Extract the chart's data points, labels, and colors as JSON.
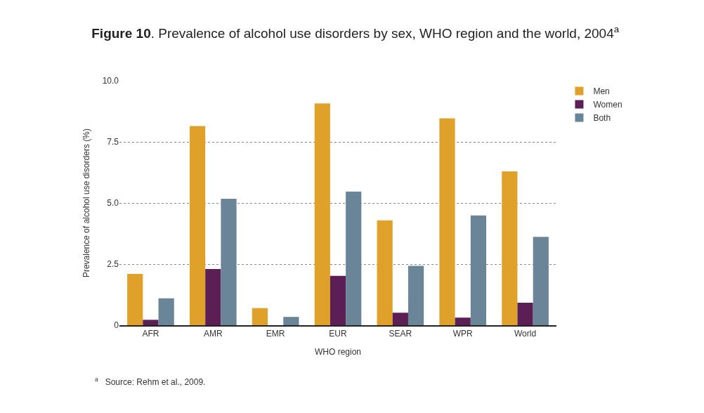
{
  "chart_data": {
    "type": "bar",
    "title": "Figure 10. Prevalence of alcohol use disorders by sex, WHO region and the world, 2004$^{a}$",
    "xlabel": "WHO region",
    "ylabel": "Prevalence of alcohol use disorders (%)",
    "categories": [
      "AFR",
      "AMR",
      "EMR",
      "EUR",
      "SEAR",
      "WPR",
      "World"
    ],
    "series": [
      {
        "name": "Men",
        "color": "#e0a12a",
        "values": [
          2.1,
          8.15,
          0.7,
          9.07,
          4.29,
          8.46,
          6.29
        ]
      },
      {
        "name": "Women",
        "color": "#5c1f55",
        "values": [
          0.22,
          2.3,
          0,
          2.02,
          0.51,
          0.31,
          0.92
        ]
      },
      {
        "name": "Both",
        "color": "#6b8598",
        "values": [
          1.1,
          5.17,
          0.34,
          5.47,
          2.43,
          4.49,
          3.61
        ]
      }
    ],
    "ylim": [
      0,
      10
    ],
    "yticks": [
      0,
      {
        "value": 2.5,
        "label": "2.5"
      },
      {
        "value": 5,
        "label": "5.0"
      },
      {
        "value": 7.5,
        "label": "7.5"
      },
      {
        "value": 10,
        "label": "10.0"
      }
    ],
    "grid": "y",
    "legend": "top right",
    "annotations": [
      "$^{a}$   Source: Rehm et al., 2009."
    ]
  }
}
